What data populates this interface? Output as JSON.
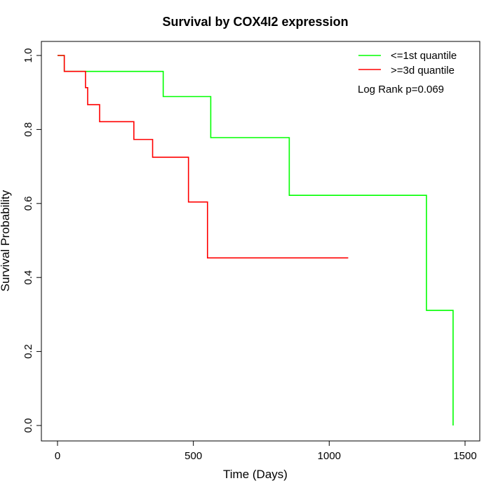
{
  "chart_data": {
    "type": "line",
    "step": true,
    "title": "Survival by COX4I2 expression",
    "xlabel": "Time (Days)",
    "ylabel": "Survival Probability",
    "xlim": [
      0,
      1500
    ],
    "ylim": [
      0,
      1
    ],
    "xticks": [
      "0",
      "500",
      "1000",
      "1500"
    ],
    "yticks": [
      "0.0",
      "0.2",
      "0.4",
      "0.6",
      "0.8",
      "1.0"
    ],
    "grid": false,
    "legend_position": "top-right",
    "annotation": "Log Rank p=0.069",
    "series": [
      {
        "name": "<=1st quantile",
        "color": "#00ff00",
        "x": [
          0,
          25,
          389,
          564,
          853,
          1358,
          1456
        ],
        "y": [
          1.0,
          0.957,
          0.889,
          0.778,
          0.622,
          0.311,
          0.0
        ],
        "end": 1456
      },
      {
        "name": ">=3d quantile",
        "color": "#ff0000",
        "x": [
          0,
          25,
          103,
          111,
          155,
          281,
          350,
          482,
          552
        ],
        "y": [
          1.0,
          0.957,
          0.913,
          0.867,
          0.821,
          0.773,
          0.725,
          0.604,
          0.453
        ],
        "end": 1070
      }
    ]
  }
}
